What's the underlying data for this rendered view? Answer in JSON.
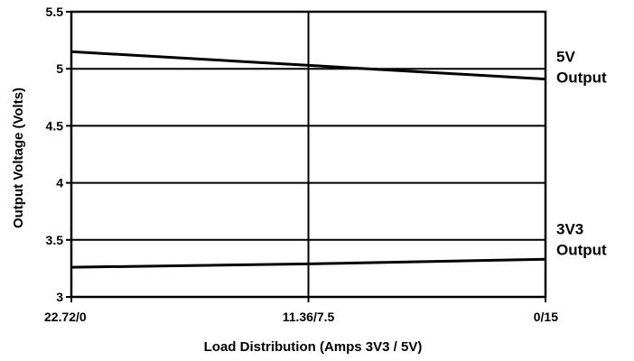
{
  "chart_data": {
    "type": "line",
    "title": "",
    "xlabel": "Load Distribution (Amps 3V3 / 5V)",
    "ylabel": "Output Voltage (Volts)",
    "categories": [
      "22.72/0",
      "11.36/7.5",
      "0/15"
    ],
    "ylim": [
      3,
      5.5
    ],
    "yticks": [
      "3",
      "3.5",
      "4",
      "4.5",
      "5",
      "5.5"
    ],
    "grid": "horizontal-and-vertical",
    "legend": "right-side labels",
    "series": [
      {
        "label_lines": [
          "5V",
          "Output"
        ],
        "values": [
          5.15,
          5.03,
          4.91
        ],
        "color": "#000000"
      },
      {
        "label_lines": [
          "3V3",
          "Output"
        ],
        "values": [
          3.26,
          3.29,
          3.33
        ],
        "color": "#000000"
      }
    ]
  }
}
